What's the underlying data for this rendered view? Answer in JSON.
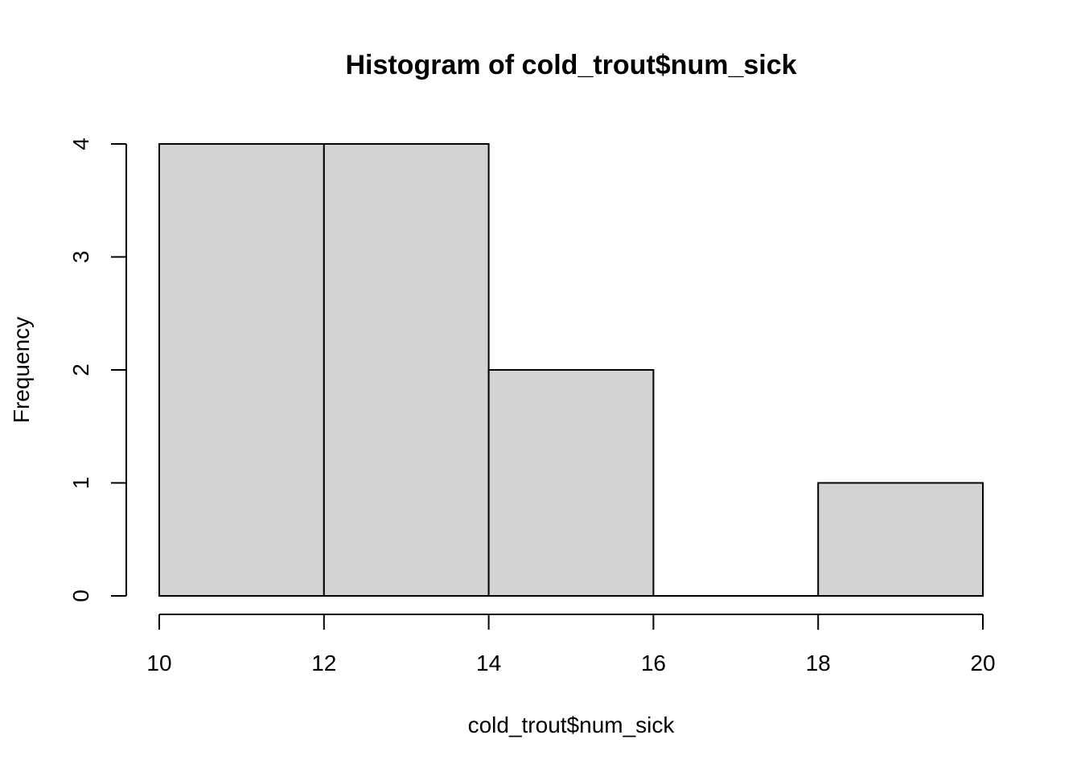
{
  "chart_data": {
    "type": "bar",
    "title": "Histogram of cold_trout$num_sick",
    "xlabel": "cold_trout$num_sick",
    "ylabel": "Frequency",
    "bins": [
      {
        "start": 10,
        "end": 12,
        "count": 4
      },
      {
        "start": 12,
        "end": 14,
        "count": 4
      },
      {
        "start": 14,
        "end": 16,
        "count": 2
      },
      {
        "start": 16,
        "end": 18,
        "count": 0
      },
      {
        "start": 18,
        "end": 20,
        "count": 1
      }
    ],
    "xlim": [
      10,
      20
    ],
    "ylim": [
      0,
      4
    ],
    "x_ticks": [
      10,
      12,
      14,
      16,
      18,
      20
    ],
    "y_ticks": [
      0,
      1,
      2,
      3,
      4
    ],
    "grid": false,
    "legend": "none",
    "bar_color": "#d3d3d3",
    "border_color": "#000000"
  }
}
